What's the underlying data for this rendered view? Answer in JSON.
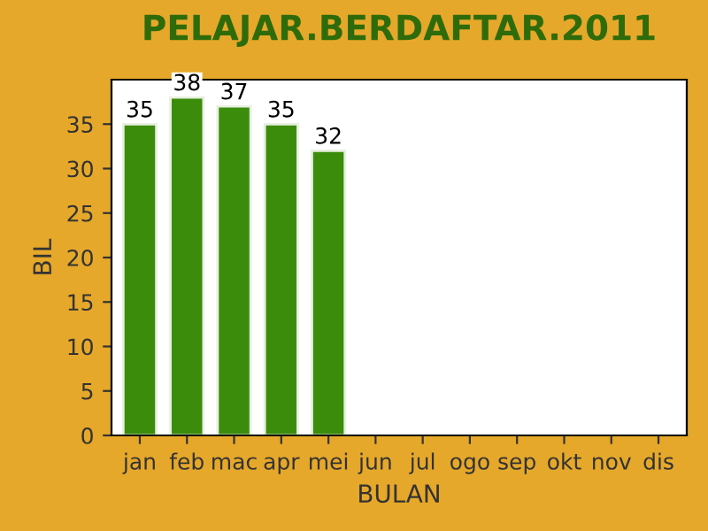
{
  "chart_data": {
    "type": "bar",
    "title": "PELAJAR.BERDAFTAR.2011",
    "xlabel": "BULAN",
    "ylabel": "BIL",
    "categories": [
      "jan",
      "feb",
      "mac",
      "apr",
      "mei",
      "jun",
      "jul",
      "ogo",
      "sep",
      "okt",
      "nov",
      "dis"
    ],
    "values": [
      35,
      38,
      37,
      35,
      32,
      null,
      null,
      null,
      null,
      null,
      null,
      null
    ],
    "color": "#3c8c0c",
    "ylim": [
      0,
      40
    ],
    "yticks": [
      0,
      5,
      10,
      15,
      20,
      25,
      30,
      35
    ],
    "data_labels": true,
    "grid": false
  }
}
